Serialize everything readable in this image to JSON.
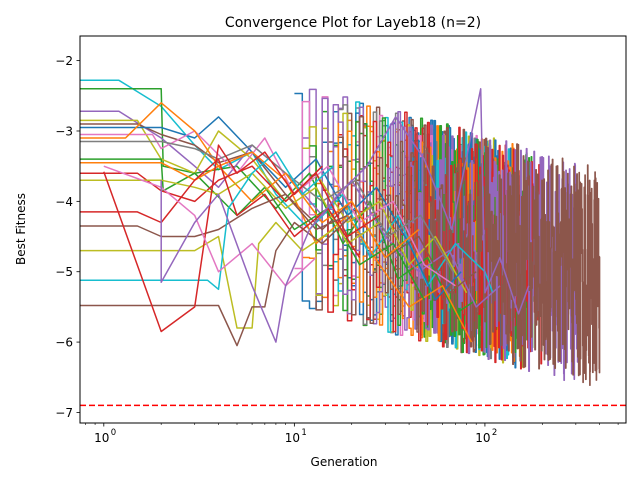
{
  "chart_data": {
    "type": "line",
    "title": "Convergence Plot for Layeb18 (n=2)",
    "xlabel": "Generation",
    "ylabel": "Best Fitness",
    "xscale": "log",
    "xlim": [
      0.75,
      550
    ],
    "ylim": [
      -7.15,
      -1.65
    ],
    "grid": false,
    "legend": "none",
    "x_ticks": [
      {
        "value": 1,
        "base": "10",
        "exp": "0"
      },
      {
        "value": 10,
        "base": "10",
        "exp": "1"
      },
      {
        "value": 100,
        "base": "10",
        "exp": "2"
      }
    ],
    "y_ticks": [
      {
        "value": -2,
        "label": "−2"
      },
      {
        "value": -3,
        "label": "−3"
      },
      {
        "value": -4,
        "label": "−4"
      },
      {
        "value": -5,
        "label": "−5"
      },
      {
        "value": -6,
        "label": "−6"
      },
      {
        "value": -7,
        "label": "−7"
      }
    ],
    "reference_line": {
      "y": -6.9,
      "color": "#ff0000",
      "style": "dashed"
    },
    "colors": [
      "#1f77b4",
      "#ff7f0e",
      "#2ca02c",
      "#d62728",
      "#9467bd",
      "#8c564b",
      "#e377c2",
      "#7f7f7f",
      "#bcbd22",
      "#17becf"
    ],
    "series": [
      {
        "points": [
          [
            0.7,
            -2.28
          ],
          [
            1.2,
            -2.28
          ],
          [
            2,
            -2.65
          ],
          [
            3,
            -3.2
          ],
          [
            4,
            -3.55
          ],
          [
            6,
            -3.3
          ],
          [
            8,
            -3.9
          ],
          [
            12,
            -4.4
          ],
          [
            18,
            -3.9
          ],
          [
            25,
            -4.8
          ],
          [
            35,
            -4.2
          ],
          [
            50,
            -5.2
          ],
          [
            70,
            -4.6
          ],
          [
            100,
            -5.0
          ],
          [
            110,
            -5.3
          ]
        ],
        "color": "#17becf"
      },
      {
        "points": [
          [
            0.7,
            -2.4
          ],
          [
            2,
            -2.4
          ],
          [
            2.05,
            -3.5
          ],
          [
            3,
            -3.6
          ],
          [
            5,
            -3.5
          ],
          [
            8,
            -4.1
          ],
          [
            12,
            -3.6
          ],
          [
            18,
            -4.6
          ],
          [
            25,
            -4.0
          ],
          [
            35,
            -5.1
          ],
          [
            50,
            -4.8
          ],
          [
            70,
            -5.6
          ],
          [
            90,
            -5.4
          ]
        ],
        "color": "#2ca02c"
      },
      {
        "points": [
          [
            0.7,
            -2.72
          ],
          [
            1.2,
            -2.72
          ],
          [
            2,
            -3.1
          ],
          [
            3,
            -3.5
          ],
          [
            4,
            -3.8
          ],
          [
            6,
            -3.2
          ],
          [
            9,
            -3.6
          ],
          [
            14,
            -4.2
          ],
          [
            20,
            -3.7
          ],
          [
            30,
            -4.5
          ],
          [
            45,
            -5.0
          ],
          [
            65,
            -4.7
          ],
          [
            90,
            -5.5
          ],
          [
            120,
            -5.2
          ]
        ],
        "color": "#9467bd"
      },
      {
        "points": [
          [
            0.7,
            -2.85
          ],
          [
            1.5,
            -2.85
          ],
          [
            2,
            -3.4
          ],
          [
            3,
            -3.6
          ],
          [
            4,
            -3.0
          ],
          [
            6,
            -3.4
          ],
          [
            9,
            -4.0
          ],
          [
            13,
            -3.6
          ],
          [
            19,
            -4.3
          ],
          [
            28,
            -4.0
          ],
          [
            40,
            -4.9
          ],
          [
            55,
            -4.5
          ],
          [
            80,
            -5.3
          ]
        ],
        "color": "#bcbd22"
      },
      {
        "points": [
          [
            0.7,
            -2.9
          ],
          [
            1.5,
            -2.9
          ],
          [
            2,
            -3.05
          ],
          [
            3,
            -3.2
          ],
          [
            4,
            -3.45
          ],
          [
            6,
            -3.3
          ],
          [
            9,
            -3.9
          ],
          [
            14,
            -4.4
          ],
          [
            20,
            -4.0
          ],
          [
            30,
            -4.8
          ],
          [
            45,
            -4.5
          ],
          [
            65,
            -5.3
          ],
          [
            90,
            -5.0
          ]
        ],
        "color": "#8c564b"
      },
      {
        "points": [
          [
            0.7,
            -2.95
          ],
          [
            2,
            -2.95
          ],
          [
            3,
            -3.1
          ],
          [
            4,
            -2.8
          ],
          [
            6,
            -3.3
          ],
          [
            9,
            -3.8
          ],
          [
            13,
            -3.4
          ],
          [
            19,
            -4.2
          ],
          [
            27,
            -3.8
          ],
          [
            40,
            -4.6
          ],
          [
            55,
            -5.4
          ],
          [
            75,
            -5.0
          ]
        ],
        "color": "#1f77b4"
      },
      {
        "points": [
          [
            0.7,
            -3.05
          ],
          [
            1.8,
            -3.05
          ],
          [
            2,
            -3.25
          ],
          [
            3,
            -3.0
          ],
          [
            5,
            -3.6
          ],
          [
            7,
            -3.1
          ],
          [
            10,
            -3.9
          ],
          [
            15,
            -3.5
          ],
          [
            22,
            -4.3
          ],
          [
            33,
            -4.0
          ],
          [
            48,
            -4.9
          ],
          [
            70,
            -5.2
          ]
        ],
        "color": "#e377c2"
      },
      {
        "points": [
          [
            0.7,
            -3.1
          ],
          [
            1.3,
            -3.1
          ],
          [
            2,
            -2.6
          ],
          [
            3,
            -3.0
          ],
          [
            4,
            -3.5
          ],
          [
            6,
            -3.3
          ],
          [
            9,
            -3.7
          ],
          [
            13,
            -4.6
          ],
          [
            19,
            -4.2
          ],
          [
            28,
            -4.9
          ],
          [
            40,
            -5.5
          ],
          [
            60,
            -5.2
          ],
          [
            85,
            -6.0
          ]
        ],
        "color": "#ff7f0e"
      },
      {
        "points": [
          [
            0.7,
            -3.15
          ],
          [
            2,
            -3.15
          ],
          [
            3,
            -3.25
          ],
          [
            4,
            -3.4
          ],
          [
            6,
            -3.2
          ],
          [
            9,
            -3.6
          ],
          [
            14,
            -4.0
          ],
          [
            21,
            -3.7
          ],
          [
            31,
            -4.5
          ],
          [
            46,
            -4.2
          ],
          [
            68,
            -5.0
          ]
        ],
        "color": "#7f7f7f"
      },
      {
        "points": [
          [
            0.7,
            -3.4
          ],
          [
            2,
            -3.4
          ],
          [
            2.05,
            -3.85
          ],
          [
            3,
            -3.6
          ],
          [
            5,
            -4.2
          ],
          [
            7,
            -3.8
          ],
          [
            10,
            -4.4
          ],
          [
            15,
            -4.1
          ],
          [
            22,
            -4.9
          ],
          [
            33,
            -4.6
          ],
          [
            48,
            -5.4
          ]
        ],
        "color": "#2ca02c"
      },
      {
        "points": [
          [
            0.7,
            -3.45
          ],
          [
            2,
            -3.45
          ],
          [
            3,
            -3.7
          ],
          [
            4,
            -3.5
          ],
          [
            6,
            -4.0
          ],
          [
            9,
            -3.6
          ],
          [
            14,
            -4.3
          ],
          [
            20,
            -4.0
          ],
          [
            30,
            -4.8
          ],
          [
            45,
            -4.4
          ]
        ],
        "color": "#ff7f0e"
      },
      {
        "points": [
          [
            0.7,
            -3.6
          ],
          [
            1.5,
            -3.6
          ],
          [
            2,
            -3.85
          ],
          [
            3,
            -4.0
          ],
          [
            4,
            -3.7
          ],
          [
            6,
            -3.5
          ],
          [
            9,
            -4.0
          ],
          [
            13,
            -3.6
          ],
          [
            19,
            -4.5
          ],
          [
            28,
            -4.2
          ]
        ],
        "color": "#d62728"
      },
      {
        "points": [
          [
            0.7,
            -3.7
          ],
          [
            2,
            -3.7
          ],
          [
            3,
            -3.8
          ],
          [
            4,
            -3.9
          ],
          [
            6,
            -3.6
          ],
          [
            9,
            -4.1
          ],
          [
            13,
            -3.8
          ],
          [
            19,
            -4.6
          ],
          [
            28,
            -4.3
          ]
        ],
        "color": "#bcbd22"
      },
      {
        "points": [
          [
            0.7,
            -4.15
          ],
          [
            1.5,
            -4.15
          ],
          [
            2,
            -4.3
          ],
          [
            3,
            -3.7
          ],
          [
            4,
            -3.4
          ],
          [
            5,
            -4.2
          ],
          [
            7,
            -3.9
          ],
          [
            10,
            -4.5
          ],
          [
            15,
            -4.1
          ],
          [
            22,
            -4.8
          ]
        ],
        "color": "#d62728"
      },
      {
        "points": [
          [
            0.7,
            -4.35
          ],
          [
            1.5,
            -4.35
          ],
          [
            2,
            -4.5
          ],
          [
            3,
            -4.5
          ],
          [
            4,
            -4.4
          ],
          [
            6,
            -4.1
          ],
          [
            9,
            -3.9
          ],
          [
            13,
            -4.4
          ],
          [
            19,
            -4.2
          ]
        ],
        "color": "#8c564b"
      },
      {
        "points": [
          [
            0.7,
            -4.7
          ],
          [
            2,
            -4.7
          ],
          [
            3,
            -4.7
          ],
          [
            4,
            -4.5
          ],
          [
            5,
            -5.8
          ],
          [
            6,
            -5.8
          ],
          [
            6.5,
            -4.6
          ],
          [
            8,
            -4.3
          ],
          [
            11,
            -4.7
          ],
          [
            16,
            -4.4
          ]
        ],
        "color": "#bcbd22"
      },
      {
        "points": [
          [
            0.7,
            -5.12
          ],
          [
            3.5,
            -5.12
          ],
          [
            4,
            -5.25
          ],
          [
            4.5,
            -4.1
          ],
          [
            6,
            -3.6
          ],
          [
            8,
            -3.3
          ],
          [
            11,
            -3.9
          ],
          [
            16,
            -3.5
          ]
        ],
        "color": "#17becf"
      },
      {
        "points": [
          [
            0.7,
            -5.48
          ],
          [
            3,
            -5.48
          ],
          [
            4,
            -5.48
          ],
          [
            5,
            -6.05
          ],
          [
            6,
            -5.5
          ],
          [
            7,
            -5.5
          ],
          [
            8,
            -4.7
          ],
          [
            10,
            -4.3
          ],
          [
            14,
            -4.6
          ],
          [
            20,
            -4.2
          ]
        ],
        "color": "#8c564b"
      },
      {
        "points": [
          [
            1,
            -3.58
          ],
          [
            2,
            -5.85
          ],
          [
            3,
            -5.5
          ],
          [
            4,
            -3.2
          ],
          [
            5,
            -3.6
          ],
          [
            7,
            -3.3
          ],
          [
            10,
            -3.9
          ],
          [
            14,
            -3.5
          ]
        ],
        "color": "#d62728"
      },
      {
        "points": [
          [
            1,
            -3.5
          ],
          [
            2,
            -3.8
          ],
          [
            3,
            -4.2
          ],
          [
            4,
            -5.0
          ],
          [
            6,
            -4.6
          ],
          [
            9,
            -5.2
          ],
          [
            13,
            -4.8
          ]
        ],
        "color": "#e377c2"
      },
      {
        "points": [
          [
            2,
            -3.7
          ],
          [
            2,
            -5.15
          ],
          [
            3,
            -4.3
          ],
          [
            4,
            -3.9
          ],
          [
            6,
            -5.2
          ],
          [
            8,
            -6.0
          ],
          [
            9,
            -5.2
          ],
          [
            12,
            -4.4
          ],
          [
            17,
            -3.9
          ],
          [
            24,
            -3.5
          ],
          [
            34,
            -2.8
          ],
          [
            48,
            -3.4
          ],
          [
            67,
            -4.4
          ],
          [
            95,
            -2.4
          ],
          [
            100,
            -5.3
          ],
          [
            120,
            -4.8
          ],
          [
            150,
            -5.6
          ],
          [
            170,
            -5.2
          ]
        ],
        "color": "#9467bd"
      }
    ],
    "noise_band": {
      "color_order": [
        "#1f77b4",
        "#ff7f0e",
        "#2ca02c",
        "#d62728",
        "#9467bd",
        "#8c564b",
        "#e377c2",
        "#7f7f7f",
        "#bcbd22",
        "#17becf"
      ],
      "end_generations": [
        75,
        82,
        90,
        95,
        105,
        110,
        115,
        120,
        130,
        140,
        150,
        160,
        180,
        200,
        310,
        400
      ]
    }
  }
}
